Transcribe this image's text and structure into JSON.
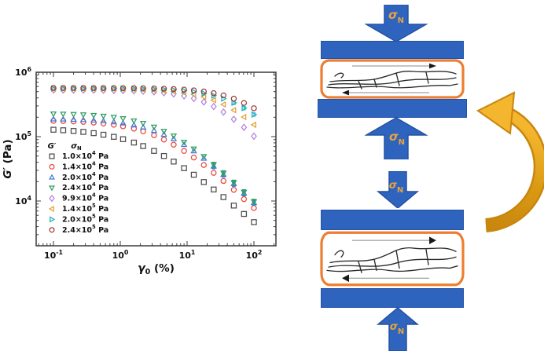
{
  "figure": {
    "background": "#ffffff"
  },
  "chart_data": {
    "type": "scatter",
    "title": "",
    "xlabel": {
      "sym": "γ",
      "sub": "0",
      "rest": " (%)"
    },
    "ylabel": {
      "sym": "G′",
      "rest": " (Pa)"
    },
    "x_scale": "log",
    "y_scale": "log",
    "xlim": [
      0.055,
      215
    ],
    "ylim": [
      2000,
      1000000
    ],
    "grid": false,
    "frame_color": "#3a3a3a",
    "tick_label_color": "#111111",
    "x_ticks": [
      {
        "label": "10^-1",
        "value": 0.1
      },
      {
        "label": "10^0",
        "value": 1
      },
      {
        "label": "10^1",
        "value": 10
      },
      {
        "label": "10^2",
        "value": 100
      }
    ],
    "y_ticks": [
      {
        "label": "10^4",
        "value": 10000
      },
      {
        "label": "10^5",
        "value": 100000
      },
      {
        "label": "10^6",
        "value": 1000000
      }
    ],
    "legend": {
      "position": "inside lower-left",
      "col1_header": {
        "sym": "G′"
      },
      "col2_header": {
        "sym": "σ",
        "sub": "N"
      }
    },
    "x": [
      0.1,
      0.14,
      0.2,
      0.28,
      0.4,
      0.56,
      0.8,
      1.1,
      1.6,
      2.2,
      3.2,
      4.5,
      6.3,
      9,
      12.6,
      17.8,
      25,
      35,
      50,
      71,
      100
    ],
    "series": [
      {
        "name": "1.0×10^4 Pa",
        "marker": "square",
        "color": "#4d4d4d",
        "values": [
          128000,
          125600,
          122400,
          118500,
          113300,
          107100,
          99300,
          91300,
          80900,
          71400,
          60000,
          50000,
          41000,
          32400,
          25600,
          19700,
          15100,
          11500,
          8500,
          6300,
          4700
        ]
      },
      {
        "name": "1.4×10^4 Pa",
        "marker": "circle",
        "color": "#E8483B",
        "values": [
          176100,
          174600,
          172300,
          169500,
          165300,
          160100,
          152800,
          144700,
          132800,
          120900,
          105200,
          90000,
          75000,
          60000,
          47400,
          36300,
          27400,
          20500,
          14900,
          10700,
          7800
        ]
      },
      {
        "name": "2.0×10^4 Pa",
        "marker": "triangle-up",
        "color": "#3D7BD9",
        "err": {
          "from": 25,
          "frac": 0.09
        },
        "values": [
          187400,
          186300,
          184700,
          182500,
          179300,
          175100,
          169100,
          162000,
          151200,
          140000,
          124200,
          108000,
          92600,
          75100,
          59800,
          46000,
          34700,
          25800,
          18500,
          13200,
          9400
        ]
      },
      {
        "name": "2.4×10^4 Pa",
        "marker": "triangle-down",
        "color": "#2E9E63",
        "err": {
          "from": 25,
          "frac": 0.09
        },
        "values": [
          226300,
          224700,
          222400,
          219300,
          214700,
          208900,
          200500,
          190800,
          176300,
          161500,
          141400,
          121300,
          102700,
          82100,
          64600,
          49200,
          36800,
          27200,
          19400,
          13800,
          9800
        ]
      },
      {
        "name": "9.9×10^4 Pa",
        "marker": "diamond",
        "color": "#B283E0",
        "values": [
          529400,
          529200,
          528700,
          528100,
          527000,
          525600,
          523300,
          520200,
          514700,
          508000,
          496300,
          480700,
          459300,
          428900,
          391800,
          345700,
          293800,
          240600,
          186200,
          139300,
          101300
        ]
      },
      {
        "name": "1.4×10^5 Pa",
        "marker": "triangle-left",
        "color": "#E2A233",
        "values": [
          549600,
          549500,
          549200,
          548800,
          548100,
          547200,
          545700,
          543700,
          540100,
          535700,
          527900,
          517300,
          502500,
          480300,
          451900,
          414200,
          368000,
          316100,
          257600,
          201800,
          152600
        ]
      },
      {
        "name": "2.0×10^5 Pa",
        "marker": "triangle-right",
        "color": "#19AEC2",
        "err": {
          "from": 50,
          "frac": 0.06
        },
        "values": [
          559800,
          559700,
          559500,
          559300,
          558900,
          558300,
          557400,
          556200,
          554000,
          551300,
          546500,
          539800,
          530300,
          515700,
          496300,
          469000,
          433200,
          389500,
          334900,
          277100,
          220400
        ]
      },
      {
        "name": "2.4×10^5 Pa",
        "marker": "circle",
        "color": "#9C3D34",
        "values": [
          569800,
          569800,
          569600,
          569500,
          569200,
          568800,
          568200,
          567300,
          565800,
          563800,
          560400,
          555600,
          548700,
          538000,
          523400,
          502400,
          473900,
          437300,
          388800,
          333800,
          275600
        ]
      }
    ]
  },
  "diagram": {
    "sigma_label": {
      "sym": "σ",
      "sub": "N"
    },
    "colors": {
      "plate_blue": "#2F64BE",
      "plate_blue_dark": "#2452A4",
      "box_border_orange": "#ED7D31",
      "sigma_gold": "#E8A33D",
      "curve_gold_light": "#F4B62E",
      "curve_gold_dark": "#C8860D",
      "network_line": "#2b2b2b",
      "shear_arrow_gray": "#8a8a8a"
    }
  }
}
